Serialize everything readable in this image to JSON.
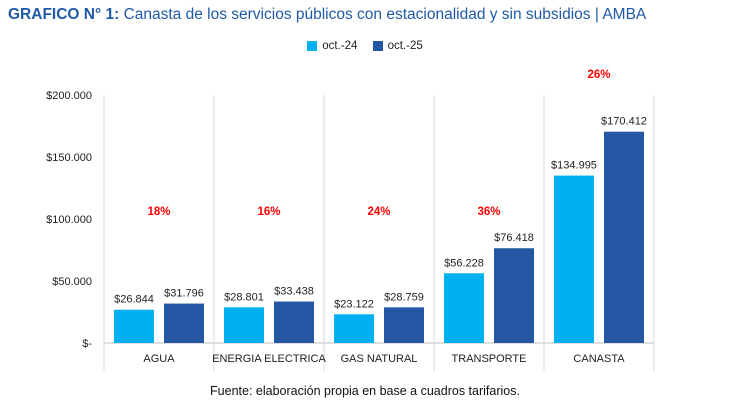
{
  "header": {
    "title_bold": "GRAFICO N° 1:",
    "title_rest": " Canasta de los servicios públicos con estacionalidad y sin subsidios | AMBA"
  },
  "source_note": "Fuente: elaboración propia en base a cuadros tarifarios.",
  "chart_data": {
    "type": "bar",
    "categories": [
      "AGUA",
      "ENERGIA ELECTRICA",
      "GAS NATURAL",
      "TRANSPORTE",
      "CANASTA"
    ],
    "series": [
      {
        "name": "oct.-24",
        "values": [
          26844,
          28801,
          23122,
          56228,
          134995
        ],
        "labels": [
          "$26.844",
          "$28.801",
          "$23.122",
          "$56.228",
          "$134.995"
        ],
        "color": "#00b0f0"
      },
      {
        "name": "oct.-25",
        "values": [
          31796,
          33438,
          28759,
          76418,
          170412
        ],
        "labels": [
          "$31.796",
          "$33.438",
          "$28.759",
          "$76.418",
          "$170.412"
        ],
        "color": "#2456a4"
      }
    ],
    "annotations": [
      "18%",
      "16%",
      "24%",
      "36%",
      "26%"
    ],
    "annotation_color": "#ff0000",
    "ylim": [
      0,
      200000
    ],
    "yticks": [
      0,
      50000,
      100000,
      150000,
      200000
    ],
    "ytick_labels": [
      "$-",
      "$50.000",
      "$100.000",
      "$150.000",
      "$200.000"
    ],
    "grid": false,
    "category_separators": true,
    "legend_position": "top-center"
  }
}
